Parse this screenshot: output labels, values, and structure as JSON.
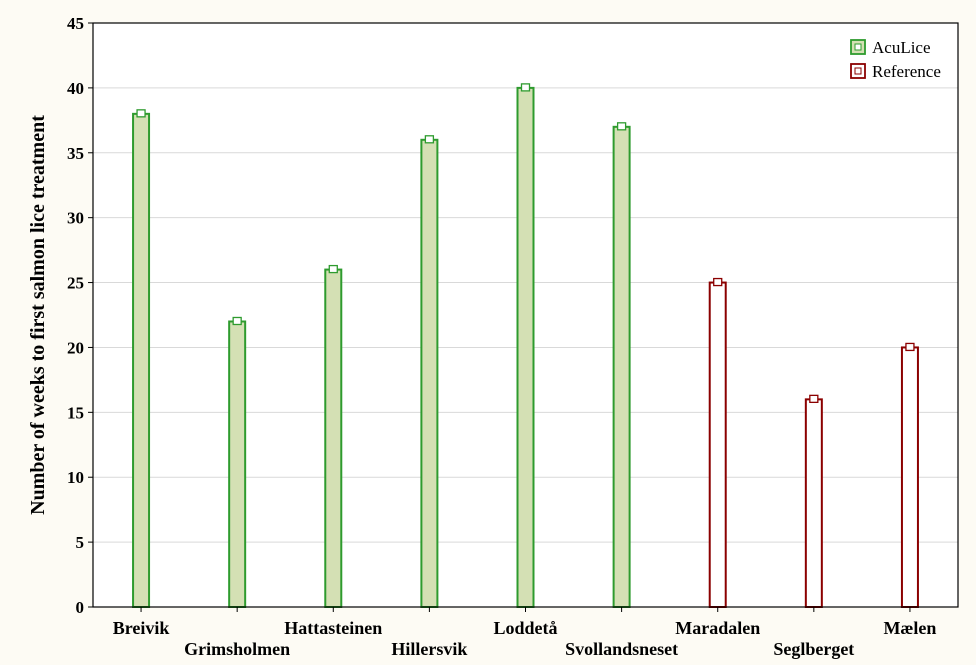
{
  "chart_data": {
    "type": "bar",
    "title": "",
    "xlabel": "",
    "ylabel": "Number of weeks to first salmon lice treatment",
    "ylim": [
      0,
      45
    ],
    "yticks": [
      0,
      5,
      10,
      15,
      20,
      25,
      30,
      35,
      40,
      45
    ],
    "grid": true,
    "legend_position": "top-right",
    "categories": [
      "Breivik",
      "Grimsholmen",
      "Hattasteinen",
      "Hillersvik",
      "Loddetå",
      "Svollandsneset",
      "Maradalen",
      "Seglberget",
      "Mælen"
    ],
    "series": [
      {
        "name": "AcuLice",
        "color": "#d4e0b4",
        "edge": "#2e9b2e",
        "values": [
          38,
          22,
          26,
          36,
          40,
          37,
          null,
          null,
          null
        ]
      },
      {
        "name": "Reference",
        "color": "#ffffff",
        "edge": "#8b0000",
        "values": [
          null,
          null,
          null,
          null,
          null,
          null,
          25,
          16,
          20
        ]
      }
    ]
  }
}
